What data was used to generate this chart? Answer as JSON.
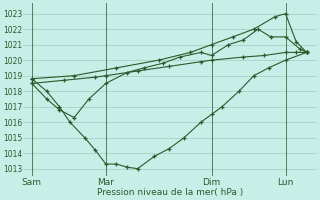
{
  "title": "Pression niveau de la mer( hPa )",
  "background_color": "#c8eee8",
  "grid_color": "#a0ccc0",
  "line_color": "#2a5a2a",
  "ylim": [
    1012.5,
    1023.7
  ],
  "yticks": [
    1013,
    1014,
    1015,
    1016,
    1017,
    1018,
    1019,
    1020,
    1021,
    1022,
    1023
  ],
  "xtick_labels": [
    "Sam",
    "Mar",
    "Dim",
    "Lun"
  ],
  "xtick_positions": [
    0,
    3.5,
    8.5,
    12.0
  ],
  "vline_positions": [
    0,
    3.5,
    8.5,
    12.0
  ],
  "s1_x": [
    0,
    0.7,
    1.3,
    1.8,
    2.5,
    3.0,
    3.5,
    4.0,
    4.5,
    5.0,
    5.8,
    6.5,
    7.2,
    8.0,
    8.5,
    9.0,
    9.8,
    10.5,
    11.2,
    12.0,
    13.0
  ],
  "s1_y": [
    1018.8,
    1018.0,
    1017.0,
    1016.0,
    1015.0,
    1014.2,
    1013.3,
    1013.3,
    1013.1,
    1013.0,
    1013.8,
    1014.3,
    1015.0,
    1016.0,
    1016.5,
    1017.0,
    1018.0,
    1019.0,
    1019.5,
    1020.0,
    1020.5
  ],
  "s2_x": [
    0,
    0.7,
    1.3,
    2.0,
    2.7,
    3.5,
    4.5,
    5.3,
    6.2,
    7.0,
    8.0,
    8.5,
    9.3,
    10.0,
    10.7,
    11.3,
    12.0,
    12.7,
    13.0
  ],
  "s2_y": [
    1018.5,
    1017.5,
    1016.8,
    1016.3,
    1017.5,
    1018.5,
    1019.2,
    1019.5,
    1019.8,
    1020.2,
    1020.5,
    1020.3,
    1021.0,
    1021.3,
    1022.0,
    1021.5,
    1021.5,
    1020.7,
    1020.5
  ],
  "s3_x": [
    0,
    1.5,
    3.0,
    3.5,
    5.0,
    6.5,
    8.0,
    8.5,
    10.0,
    11.0,
    12.0,
    12.5,
    13.0
  ],
  "s3_y": [
    1018.5,
    1018.7,
    1018.9,
    1019.0,
    1019.3,
    1019.6,
    1019.9,
    1020.0,
    1020.2,
    1020.3,
    1020.5,
    1020.5,
    1020.5
  ],
  "s4_x": [
    0,
    2.0,
    4.0,
    6.0,
    7.5,
    8.5,
    9.5,
    10.5,
    11.5,
    12.0,
    12.5,
    13.0
  ],
  "s4_y": [
    1018.8,
    1019.0,
    1019.5,
    1020.0,
    1020.5,
    1021.0,
    1021.5,
    1022.0,
    1022.8,
    1023.0,
    1021.2,
    1020.5
  ]
}
